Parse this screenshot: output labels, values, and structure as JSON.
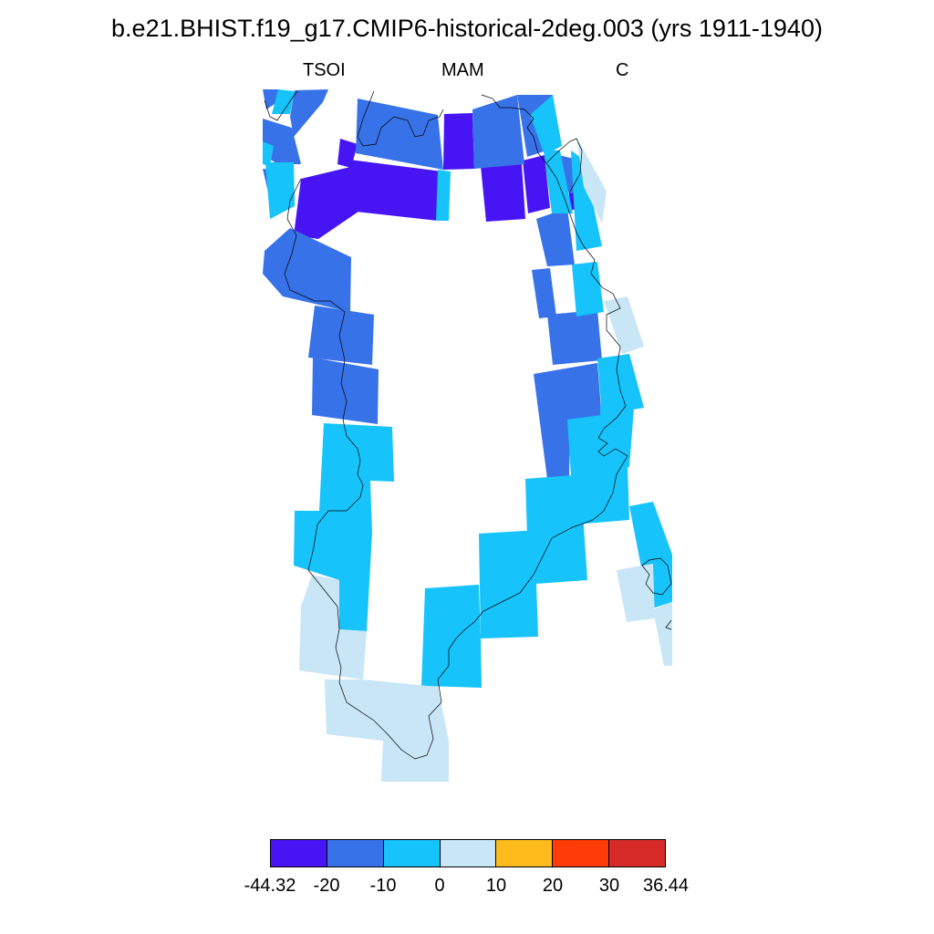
{
  "title": "b.e21.BHIST.f19_g17.CMIP6-historical-2deg.003 (yrs 1911-1940)",
  "subtitle": {
    "variable": "TSOI",
    "season": "MAM",
    "units": "C"
  },
  "colors": {
    "lt_m44": "#4715f4",
    "m20_m10": "#3872e8",
    "m10_0": "#17c3fb",
    "p0_10": "#c8e6f6",
    "p10_20": "#fdbc1b",
    "p20_30": "#fe3a06",
    "p30_up": "#d62b29",
    "coast": "#000000"
  },
  "colorbar": {
    "colors": [
      "#4715f4",
      "#3872e8",
      "#17c3fb",
      "#c8e6f6",
      "#fdbc1b",
      "#fe3a06",
      "#d62b29"
    ],
    "labels": [
      "-44.32",
      "-20",
      "-10",
      "0",
      "10",
      "20",
      "30",
      "36.44"
    ]
  }
}
